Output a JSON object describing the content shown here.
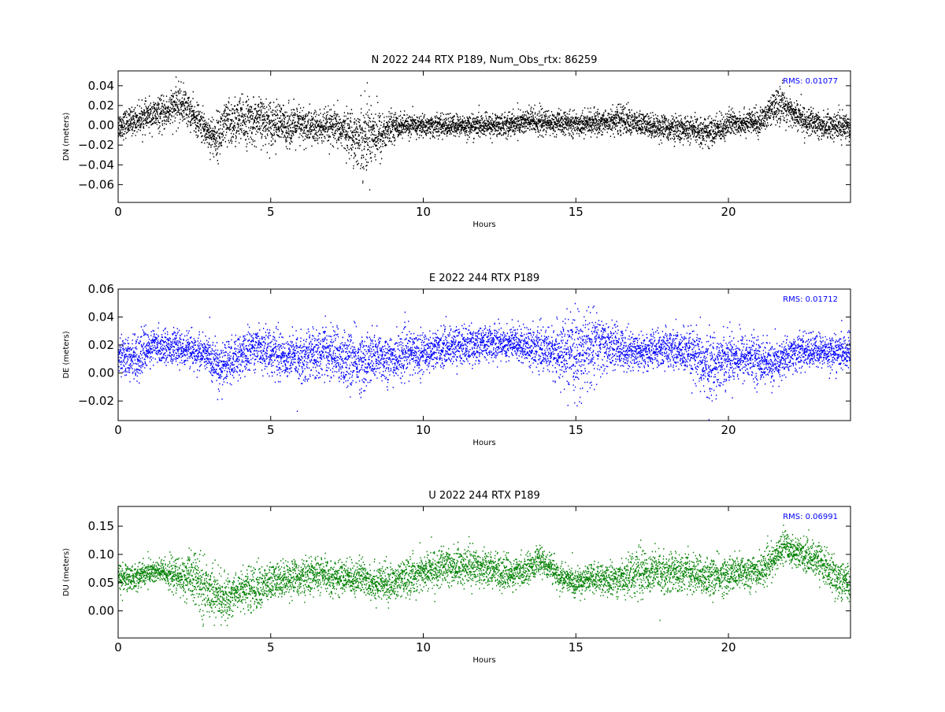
{
  "chart_data": [
    {
      "type": "scatter",
      "title": "N 2022 244 RTX  P189, Num_Obs_rtx: 86259",
      "xlabel": "Hours",
      "ylabel": "DN (meters)",
      "xlim": [
        0,
        24
      ],
      "ylim": [
        -0.078,
        0.055
      ],
      "xticks": [
        0,
        5,
        10,
        15,
        20
      ],
      "xtick_labels": [
        "0",
        "5",
        "10",
        "15",
        "20"
      ],
      "yticks": [
        -0.06,
        -0.04,
        -0.02,
        0.0,
        0.02,
        0.04
      ],
      "ytick_labels": [
        "−0.06",
        "−0.04",
        "−0.02",
        "0.00",
        "0.02",
        "0.04"
      ],
      "annotation": "RMS:  0.01077",
      "annotation_color": "#0000ff",
      "color": "#000000",
      "grid": false,
      "envelope": {
        "x": [
          0,
          0.5,
          1,
          1.5,
          2,
          2.2,
          2.5,
          3,
          3.2,
          3.5,
          4,
          4.5,
          5,
          5.5,
          6,
          6.5,
          7,
          7.5,
          7.8,
          8.1,
          8.3,
          8.6,
          9,
          9.5,
          10,
          11,
          12,
          13,
          13.5,
          14,
          15,
          16,
          16.5,
          17,
          18,
          19,
          19.5,
          20,
          20.5,
          21,
          21.5,
          21.8,
          22,
          22.5,
          23,
          23.5,
          24
        ],
        "mean": [
          0.0,
          0.005,
          0.01,
          0.012,
          0.022,
          0.02,
          0.008,
          -0.008,
          -0.012,
          0.0,
          0.005,
          0.005,
          0.004,
          0.0,
          0.0,
          -0.002,
          -0.002,
          -0.005,
          -0.012,
          -0.01,
          -0.005,
          -0.01,
          0.0,
          0.0,
          0.0,
          0.0,
          0.0,
          0.002,
          0.005,
          0.003,
          0.002,
          0.004,
          0.007,
          0.002,
          -0.002,
          -0.005,
          -0.006,
          0.002,
          0.004,
          0.003,
          0.018,
          0.022,
          0.015,
          0.005,
          0.0,
          0.0,
          0.0
        ],
        "spread": [
          0.012,
          0.012,
          0.013,
          0.015,
          0.018,
          0.016,
          0.014,
          0.016,
          0.02,
          0.022,
          0.022,
          0.02,
          0.02,
          0.018,
          0.018,
          0.016,
          0.016,
          0.018,
          0.025,
          0.035,
          0.03,
          0.022,
          0.012,
          0.01,
          0.01,
          0.01,
          0.01,
          0.011,
          0.013,
          0.011,
          0.01,
          0.011,
          0.013,
          0.011,
          0.011,
          0.012,
          0.013,
          0.012,
          0.011,
          0.011,
          0.014,
          0.016,
          0.014,
          0.012,
          0.012,
          0.012,
          0.012
        ]
      }
    },
    {
      "type": "scatter",
      "title": "E 2022 244 RTX  P189",
      "xlabel": "Hours",
      "ylabel": "DE (meters)",
      "xlim": [
        0,
        24
      ],
      "ylim": [
        -0.034,
        0.06
      ],
      "xticks": [
        0,
        5,
        10,
        15,
        20
      ],
      "xtick_labels": [
        "0",
        "5",
        "10",
        "15",
        "20"
      ],
      "yticks": [
        -0.02,
        0.0,
        0.02,
        0.04,
        0.06
      ],
      "ytick_labels": [
        "−0.02",
        "0.00",
        "0.02",
        "0.04",
        "0.06"
      ],
      "annotation": "RMS:  0.01712",
      "annotation_color": "#0000ff",
      "color": "#0000ff",
      "grid": false,
      "envelope": {
        "x": [
          0,
          0.5,
          1,
          1.5,
          2,
          2.5,
          3,
          3.3,
          3.6,
          4,
          4.5,
          5,
          5.5,
          6,
          6.5,
          7,
          7.5,
          8,
          8.5,
          9,
          9.5,
          10,
          10.5,
          11,
          11.5,
          12,
          12.5,
          13,
          13.5,
          14,
          14.5,
          14.9,
          15.3,
          15.7,
          16,
          16.5,
          17,
          17.5,
          18,
          18.5,
          19,
          19.3,
          19.6,
          20,
          20.5,
          21,
          21.5,
          22,
          22.5,
          23,
          23.5,
          24
        ],
        "mean": [
          0.015,
          0.01,
          0.018,
          0.02,
          0.018,
          0.016,
          0.012,
          0.004,
          0.008,
          0.012,
          0.02,
          0.016,
          0.012,
          0.012,
          0.015,
          0.015,
          0.01,
          0.008,
          0.012,
          0.01,
          0.015,
          0.015,
          0.018,
          0.02,
          0.02,
          0.022,
          0.022,
          0.022,
          0.02,
          0.016,
          0.015,
          0.012,
          0.016,
          0.02,
          0.02,
          0.018,
          0.016,
          0.016,
          0.018,
          0.016,
          0.01,
          0.005,
          0.008,
          0.012,
          0.012,
          0.01,
          0.006,
          0.014,
          0.016,
          0.016,
          0.015,
          0.015
        ],
        "spread": [
          0.012,
          0.014,
          0.012,
          0.01,
          0.01,
          0.011,
          0.012,
          0.016,
          0.014,
          0.013,
          0.014,
          0.014,
          0.014,
          0.015,
          0.016,
          0.017,
          0.018,
          0.018,
          0.016,
          0.015,
          0.014,
          0.013,
          0.012,
          0.012,
          0.012,
          0.011,
          0.011,
          0.011,
          0.012,
          0.013,
          0.018,
          0.024,
          0.026,
          0.022,
          0.015,
          0.013,
          0.012,
          0.012,
          0.012,
          0.014,
          0.017,
          0.022,
          0.018,
          0.016,
          0.015,
          0.014,
          0.013,
          0.012,
          0.011,
          0.011,
          0.011,
          0.011
        ]
      }
    },
    {
      "type": "scatter",
      "title": "U 2022 244 RTX  P189",
      "xlabel": "Hours",
      "ylabel": "DU (meters)",
      "xlim": [
        0,
        24
      ],
      "ylim": [
        -0.048,
        0.185
      ],
      "xticks": [
        0,
        5,
        10,
        15,
        20
      ],
      "xtick_labels": [
        "0",
        "5",
        "10",
        "15",
        "20"
      ],
      "yticks": [
        0.0,
        0.05,
        0.1,
        0.15
      ],
      "ytick_labels": [
        "0.00",
        "0.05",
        "0.10",
        "0.15"
      ],
      "annotation": "RMS:  0.06991",
      "annotation_color": "#0000ff",
      "color": "#008000",
      "grid": false,
      "envelope": {
        "x": [
          0,
          0.5,
          1,
          1.5,
          2,
          2.5,
          2.8,
          3,
          3.5,
          4,
          4.5,
          5,
          5.5,
          6,
          6.5,
          7,
          7.5,
          8,
          8.5,
          9,
          9.5,
          10,
          10.5,
          11,
          11.5,
          12,
          12.5,
          13,
          13.5,
          13.8,
          14,
          14.5,
          15,
          15.5,
          16,
          16.5,
          17,
          17.5,
          18,
          18.5,
          19,
          19.5,
          20,
          20.5,
          21,
          21.5,
          21.8,
          22,
          22.5,
          23,
          23.5,
          24
        ],
        "mean": [
          0.06,
          0.06,
          0.07,
          0.07,
          0.06,
          0.06,
          0.04,
          0.04,
          0.02,
          0.04,
          0.04,
          0.05,
          0.06,
          0.06,
          0.065,
          0.06,
          0.06,
          0.06,
          0.05,
          0.05,
          0.06,
          0.07,
          0.075,
          0.08,
          0.08,
          0.08,
          0.07,
          0.065,
          0.08,
          0.09,
          0.085,
          0.06,
          0.05,
          0.06,
          0.055,
          0.06,
          0.07,
          0.07,
          0.07,
          0.07,
          0.065,
          0.06,
          0.065,
          0.07,
          0.07,
          0.09,
          0.12,
          0.11,
          0.1,
          0.09,
          0.06,
          0.05
        ],
        "spread": [
          0.025,
          0.02,
          0.02,
          0.02,
          0.03,
          0.04,
          0.045,
          0.04,
          0.035,
          0.03,
          0.035,
          0.03,
          0.028,
          0.028,
          0.028,
          0.026,
          0.026,
          0.028,
          0.03,
          0.028,
          0.028,
          0.03,
          0.03,
          0.03,
          0.03,
          0.03,
          0.025,
          0.025,
          0.022,
          0.02,
          0.02,
          0.022,
          0.022,
          0.022,
          0.024,
          0.028,
          0.035,
          0.035,
          0.03,
          0.03,
          0.03,
          0.03,
          0.028,
          0.028,
          0.026,
          0.024,
          0.024,
          0.025,
          0.025,
          0.028,
          0.03,
          0.03
        ]
      }
    }
  ]
}
